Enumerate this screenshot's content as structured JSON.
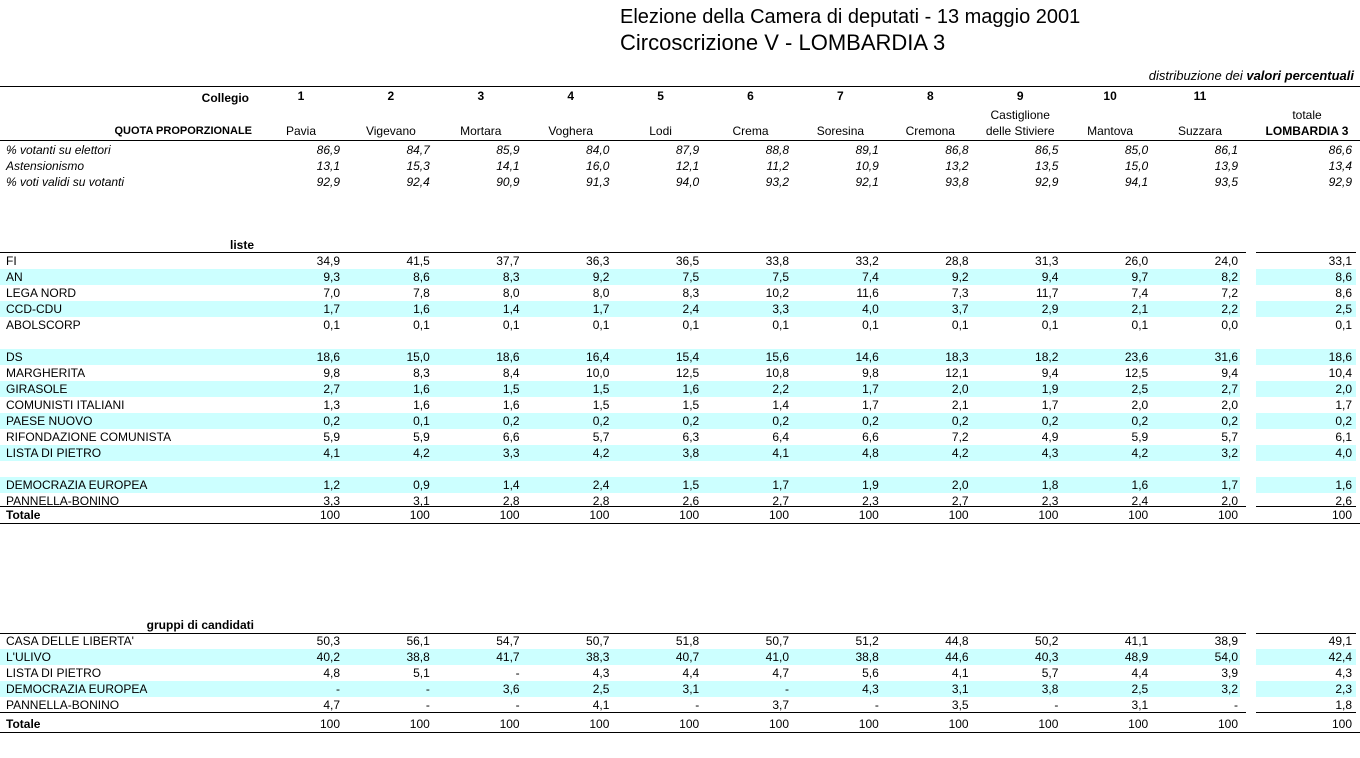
{
  "header": {
    "title": "Elezione della Camera di deputati  -  13 maggio 2001",
    "subtitle": "Circoscrizione V - LOMBARDIA 3",
    "note": {
      "prefix": "distribuzione dei",
      "emphasis": "valori percentuali"
    }
  },
  "columns": {
    "label": "Collegio",
    "section_label": "QUOTA PROPORZIONALE",
    "numbers": [
      "1",
      "2",
      "3",
      "4",
      "5",
      "6",
      "7",
      "8",
      "9",
      "10",
      "11"
    ],
    "names": [
      "Pavia",
      "Vigevano",
      "Mortara",
      "Voghera",
      "Lodi",
      "Crema",
      "Soresina",
      "Cremona",
      "Castiglione delle Stiviere",
      "Mantova",
      "Suzzara"
    ],
    "total": [
      "totale",
      "LOMBARDIA 3"
    ]
  },
  "turnout": [
    {
      "label": "% votanti su elettori",
      "values": [
        "86,9",
        "84,7",
        "85,9",
        "84,0",
        "87,9",
        "88,8",
        "89,1",
        "86,8",
        "86,5",
        "85,0",
        "86,1",
        "86,6"
      ]
    },
    {
      "label": "Astensionismo",
      "values": [
        "13,1",
        "15,3",
        "14,1",
        "16,0",
        "12,1",
        "11,2",
        "10,9",
        "13,2",
        "13,5",
        "15,0",
        "13,9",
        "13,4"
      ]
    },
    {
      "label": "% voti validi su votanti",
      "values": [
        "92,9",
        "92,4",
        "90,9",
        "91,3",
        "94,0",
        "93,2",
        "92,1",
        "93,8",
        "92,9",
        "94,1",
        "93,5",
        "92,9"
      ]
    }
  ],
  "lists": {
    "heading": "liste",
    "groups": [
      [
        {
          "label": "FI",
          "values": [
            "34,9",
            "41,5",
            "37,7",
            "36,3",
            "36,5",
            "33,8",
            "33,2",
            "28,8",
            "31,3",
            "26,0",
            "24,0",
            "33,1"
          ]
        },
        {
          "label": "AN",
          "values": [
            "9,3",
            "8,6",
            "8,3",
            "9,2",
            "7,5",
            "7,5",
            "7,4",
            "9,2",
            "9,4",
            "9,7",
            "8,2",
            "8,6"
          ]
        },
        {
          "label": "LEGA NORD",
          "values": [
            "7,0",
            "7,8",
            "8,0",
            "8,0",
            "8,3",
            "10,2",
            "11,6",
            "7,3",
            "11,7",
            "7,4",
            "7,2",
            "8,6"
          ]
        },
        {
          "label": "CCD-CDU",
          "values": [
            "1,7",
            "1,6",
            "1,4",
            "1,7",
            "2,4",
            "3,3",
            "4,0",
            "3,7",
            "2,9",
            "2,1",
            "2,2",
            "2,5"
          ]
        },
        {
          "label": "ABOLSCORP",
          "values": [
            "0,1",
            "0,1",
            "0,1",
            "0,1",
            "0,1",
            "0,1",
            "0,1",
            "0,1",
            "0,1",
            "0,1",
            "0,0",
            "0,1"
          ]
        }
      ],
      [
        {
          "label": "DS",
          "values": [
            "18,6",
            "15,0",
            "18,6",
            "16,4",
            "15,4",
            "15,6",
            "14,6",
            "18,3",
            "18,2",
            "23,6",
            "31,6",
            "18,6"
          ]
        },
        {
          "label": "MARGHERITA",
          "values": [
            "9,8",
            "8,3",
            "8,4",
            "10,0",
            "12,5",
            "10,8",
            "9,8",
            "12,1",
            "9,4",
            "12,5",
            "9,4",
            "10,4"
          ]
        },
        {
          "label": "GIRASOLE",
          "values": [
            "2,7",
            "1,6",
            "1,5",
            "1,5",
            "1,6",
            "2,2",
            "1,7",
            "2,0",
            "1,9",
            "2,5",
            "2,7",
            "2,0"
          ]
        },
        {
          "label": "COMUNISTI ITALIANI",
          "values": [
            "1,3",
            "1,6",
            "1,6",
            "1,5",
            "1,5",
            "1,4",
            "1,7",
            "2,1",
            "1,7",
            "2,0",
            "2,0",
            "1,7"
          ]
        },
        {
          "label": "PAESE NUOVO",
          "values": [
            "0,2",
            "0,1",
            "0,2",
            "0,2",
            "0,2",
            "0,2",
            "0,2",
            "0,2",
            "0,2",
            "0,2",
            "0,2",
            "0,2"
          ]
        },
        {
          "label": "RIFONDAZIONE COMUNISTA",
          "values": [
            "5,9",
            "5,9",
            "6,6",
            "5,7",
            "6,3",
            "6,4",
            "6,6",
            "7,2",
            "4,9",
            "5,9",
            "5,7",
            "6,1"
          ]
        },
        {
          "label": "LISTA DI PIETRO",
          "values": [
            "4,1",
            "4,2",
            "3,3",
            "4,2",
            "3,8",
            "4,1",
            "4,8",
            "4,2",
            "4,3",
            "4,2",
            "3,2",
            "4,0"
          ]
        }
      ],
      [
        {
          "label": "DEMOCRAZIA EUROPEA",
          "values": [
            "1,2",
            "0,9",
            "1,4",
            "2,4",
            "1,5",
            "1,7",
            "1,9",
            "2,0",
            "1,8",
            "1,6",
            "1,7",
            "1,6"
          ]
        },
        {
          "label": "PANNELLA-BONINO",
          "values": [
            "3,3",
            "3,1",
            "2,8",
            "2,8",
            "2,6",
            "2,7",
            "2,3",
            "2,7",
            "2,3",
            "2,4",
            "2,0",
            "2,6"
          ]
        }
      ]
    ],
    "total": {
      "label": "Totale",
      "values": [
        "100",
        "100",
        "100",
        "100",
        "100",
        "100",
        "100",
        "100",
        "100",
        "100",
        "100",
        "100"
      ]
    }
  },
  "groups": {
    "heading": "gruppi di candidati",
    "rows": [
      {
        "label": "CASA DELLE LIBERTA'",
        "values": [
          "50,3",
          "56,1",
          "54,7",
          "50,7",
          "51,8",
          "50,7",
          "51,2",
          "44,8",
          "50,2",
          "41,1",
          "38,9",
          "49,1"
        ]
      },
      {
        "label": "L'ULIVO",
        "values": [
          "40,2",
          "38,8",
          "41,7",
          "38,3",
          "40,7",
          "41,0",
          "38,8",
          "44,6",
          "40,3",
          "48,9",
          "54,0",
          "42,4"
        ]
      },
      {
        "label": "LISTA DI PIETRO",
        "values": [
          "4,8",
          "5,1",
          "-",
          "4,3",
          "4,4",
          "4,7",
          "5,6",
          "4,1",
          "5,7",
          "4,4",
          "3,9",
          "4,3"
        ]
      },
      {
        "label": "DEMOCRAZIA EUROPEA",
        "values": [
          "-",
          "-",
          "3,6",
          "2,5",
          "3,1",
          "-",
          "4,3",
          "3,1",
          "3,8",
          "2,5",
          "3,2",
          "2,3"
        ]
      },
      {
        "label": "PANNELLA-BONINO",
        "values": [
          "4,7",
          "-",
          "-",
          "4,1",
          "-",
          "3,7",
          "-",
          "3,5",
          "-",
          "3,1",
          "-",
          "1,8"
        ]
      }
    ],
    "total": {
      "label": "Totale",
      "values": [
        "100",
        "100",
        "100",
        "100",
        "100",
        "100",
        "100",
        "100",
        "100",
        "100",
        "100",
        "100"
      ]
    }
  }
}
